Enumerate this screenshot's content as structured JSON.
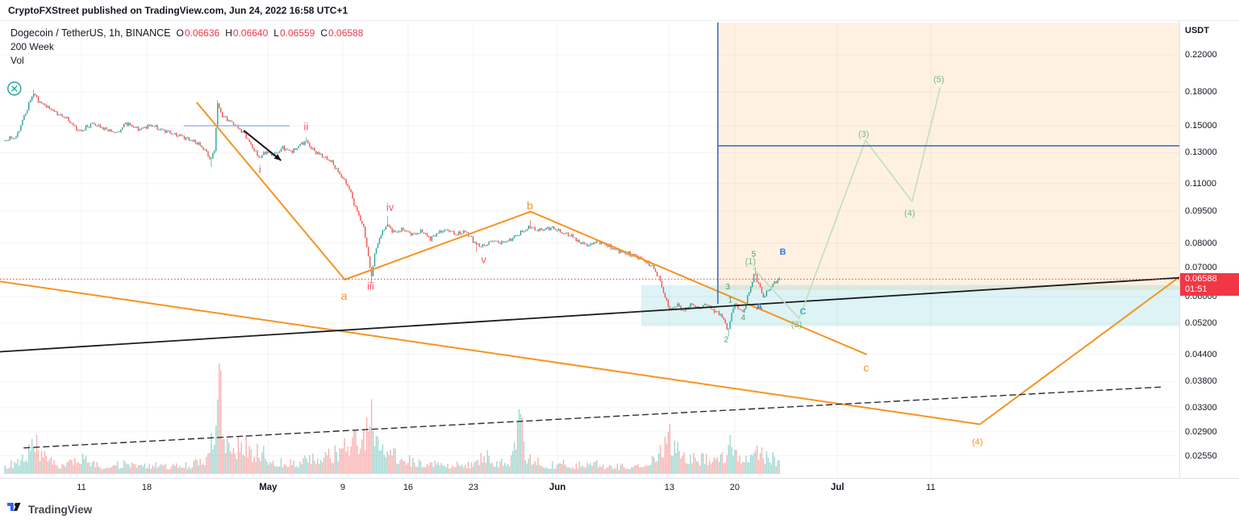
{
  "publish_bar": {
    "publisher": "CryptoFXStreet",
    "rest": " published on TradingView.com, Jun 24, 2022 16:58 UTC+1"
  },
  "legend": {
    "title": "Dogecoin / TetherUS, 1h, BINANCE",
    "ohlc": [
      {
        "k": "O",
        "v": "0.06636"
      },
      {
        "k": "H",
        "v": "0.06640"
      },
      {
        "k": "L",
        "v": "0.06559"
      },
      {
        "k": "C",
        "v": "0.06588"
      }
    ],
    "rows": [
      "200 Week",
      "Vol"
    ]
  },
  "price_axis": {
    "unit": "USDT",
    "ticks": [
      "0.22000",
      "0.18000",
      "0.15000",
      "0.13000",
      "0.11000",
      "0.09500",
      "0.08000",
      "0.07000",
      "0.06000",
      "0.05200",
      "0.04400",
      "0.03800",
      "0.03300",
      "0.02900",
      "0.02550"
    ],
    "badge": {
      "price": "0.06588",
      "countdown": "01:51"
    }
  },
  "time_axis": {
    "ticks": [
      {
        "label": "11",
        "day": 7
      },
      {
        "label": "18",
        "day": 14
      },
      {
        "label": "May",
        "day": 27
      },
      {
        "label": "9",
        "day": 35
      },
      {
        "label": "16",
        "day": 42
      },
      {
        "label": "23",
        "day": 49
      },
      {
        "label": "Jun",
        "day": 58
      },
      {
        "label": "13",
        "day": 70
      },
      {
        "label": "20",
        "day": 77
      },
      {
        "label": "Jul",
        "day": 88
      },
      {
        "label": "11",
        "day": 98
      }
    ]
  },
  "footer": {
    "brand": "TradingView"
  },
  "chart_data": {
    "type": "candlestick+volume",
    "symbol": "Dogecoin / TetherUS",
    "exchange": "BINANCE",
    "interval": "1h",
    "scale": "log",
    "ohlc_last": {
      "o": 0.06636,
      "h": 0.0664,
      "l": 0.06559,
      "c": 0.06588
    },
    "last_price": 0.06588,
    "countdown": "01:51",
    "colors": {
      "up": "#26a69a",
      "down": "#ef5350",
      "red": "#f7525f",
      "orange": "#f59422",
      "green": "#4d9e57",
      "green2": "#7ab97e",
      "blue": "#2a7de1",
      "teal": "#2ab6c9",
      "pale_green": "#bedfbf",
      "badge": "#f23645",
      "blue_line": "#3d6fc7",
      "ma_line": "#1b1b1b",
      "dashed_line": "#2a2e39",
      "light_blue": "#9fb8e6"
    },
    "price_anchors": [
      [
        -1.25,
        0.1385
      ],
      [
        0.2,
        0.142
      ],
      [
        0.9,
        0.157
      ],
      [
        1.5,
        0.169
      ],
      [
        1.95,
        0.179
      ],
      [
        2.5,
        0.1715
      ],
      [
        3.3,
        0.167
      ],
      [
        4.3,
        0.162
      ],
      [
        5.5,
        0.1565
      ],
      [
        6.9,
        0.1455
      ],
      [
        8.3,
        0.152
      ],
      [
        9.7,
        0.147
      ],
      [
        11.0,
        0.1445
      ],
      [
        11.9,
        0.1525
      ],
      [
        13.2,
        0.1475
      ],
      [
        14.6,
        0.1505
      ],
      [
        16.0,
        0.146
      ],
      [
        17.6,
        0.1425
      ],
      [
        19.2,
        0.1385
      ],
      [
        20.4,
        0.132
      ],
      [
        20.95,
        0.1245
      ],
      [
        21.35,
        0.131
      ],
      [
        21.7,
        0.168
      ],
      [
        22.2,
        0.158
      ],
      [
        23.0,
        0.1545
      ],
      [
        23.8,
        0.1495
      ],
      [
        24.6,
        0.1435
      ],
      [
        25.4,
        0.1335
      ],
      [
        26.15,
        0.1265
      ],
      [
        26.9,
        0.1305
      ],
      [
        27.7,
        0.128
      ],
      [
        28.7,
        0.1335
      ],
      [
        29.7,
        0.1305
      ],
      [
        30.7,
        0.1365
      ],
      [
        31.15,
        0.1385
      ],
      [
        32.0,
        0.1315
      ],
      [
        32.9,
        0.128
      ],
      [
        33.9,
        0.124
      ],
      [
        34.7,
        0.1165
      ],
      [
        35.25,
        0.1125
      ],
      [
        35.8,
        0.1075
      ],
      [
        36.3,
        0.099
      ],
      [
        36.9,
        0.092
      ],
      [
        37.4,
        0.086
      ],
      [
        37.85,
        0.0745
      ],
      [
        38.15,
        0.066
      ],
      [
        38.5,
        0.0745
      ],
      [
        39.0,
        0.082
      ],
      [
        39.85,
        0.0885
      ],
      [
        40.7,
        0.0845
      ],
      [
        41.6,
        0.0862
      ],
      [
        42.6,
        0.0838
      ],
      [
        43.6,
        0.0855
      ],
      [
        44.4,
        0.0818
      ],
      [
        45.3,
        0.0845
      ],
      [
        46.3,
        0.086
      ],
      [
        47.3,
        0.0838
      ],
      [
        48.3,
        0.0852
      ],
      [
        49.4,
        0.0795
      ],
      [
        50.15,
        0.0785
      ],
      [
        51.1,
        0.081
      ],
      [
        52.1,
        0.0802
      ],
      [
        53.0,
        0.0812
      ],
      [
        53.9,
        0.0838
      ],
      [
        54.8,
        0.0862
      ],
      [
        55.15,
        0.0878
      ],
      [
        55.9,
        0.0855
      ],
      [
        56.7,
        0.0862
      ],
      [
        57.6,
        0.087
      ],
      [
        58.5,
        0.0848
      ],
      [
        59.5,
        0.0835
      ],
      [
        60.4,
        0.0805
      ],
      [
        61.4,
        0.0788
      ],
      [
        62.4,
        0.081
      ],
      [
        63.4,
        0.079
      ],
      [
        64.5,
        0.0768
      ],
      [
        65.6,
        0.0755
      ],
      [
        66.6,
        0.0748
      ],
      [
        67.4,
        0.0728
      ],
      [
        68.3,
        0.0705
      ],
      [
        69.0,
        0.0665
      ],
      [
        69.6,
        0.06
      ],
      [
        70.25,
        0.0555
      ],
      [
        70.9,
        0.0575
      ],
      [
        71.6,
        0.0556
      ],
      [
        72.4,
        0.0574
      ],
      [
        73.2,
        0.0564
      ],
      [
        74.1,
        0.0576
      ],
      [
        74.9,
        0.0556
      ],
      [
        75.6,
        0.0545
      ],
      [
        76.05,
        0.0524
      ],
      [
        76.4,
        0.0496
      ],
      [
        76.7,
        0.0542
      ],
      [
        77.05,
        0.0578
      ],
      [
        77.55,
        0.0564
      ],
      [
        78.0,
        0.0547
      ],
      [
        78.4,
        0.059
      ],
      [
        78.85,
        0.0638
      ],
      [
        79.2,
        0.0678
      ],
      [
        79.65,
        0.0646
      ],
      [
        80.15,
        0.0597
      ],
      [
        80.55,
        0.0617
      ],
      [
        81.05,
        0.0635
      ],
      [
        81.5,
        0.0652
      ],
      [
        81.8,
        0.0659
      ]
    ],
    "wick_events": [
      [
        1.95,
        "h",
        0.1825
      ],
      [
        20.95,
        "l",
        0.1205
      ],
      [
        21.7,
        "h",
        0.1725
      ],
      [
        31.15,
        "h",
        0.1413
      ],
      [
        38.15,
        "l",
        0.0641
      ],
      [
        39.85,
        "h",
        0.0925
      ],
      [
        49.4,
        "l",
        0.0763
      ],
      [
        55.15,
        "h",
        0.0905
      ],
      [
        76.4,
        "l",
        0.0484
      ],
      [
        79.2,
        "h",
        0.0703
      ]
    ],
    "volume_anchors": [
      [
        -1.25,
        12
      ],
      [
        0.5,
        18
      ],
      [
        1.2,
        35
      ],
      [
        1.95,
        48
      ],
      [
        2.5,
        30
      ],
      [
        3.5,
        18
      ],
      [
        5,
        13
      ],
      [
        7,
        22
      ],
      [
        8.5,
        14
      ],
      [
        10,
        11
      ],
      [
        11.9,
        16
      ],
      [
        13.5,
        11
      ],
      [
        15,
        13
      ],
      [
        17,
        11
      ],
      [
        19,
        15
      ],
      [
        20.5,
        26
      ],
      [
        21.0,
        55
      ],
      [
        21.45,
        70
      ],
      [
        21.7,
        150
      ],
      [
        22.0,
        85
      ],
      [
        22.5,
        45
      ],
      [
        23.2,
        28
      ],
      [
        24.2,
        52
      ],
      [
        25.2,
        30
      ],
      [
        26.2,
        34
      ],
      [
        27.2,
        22
      ],
      [
        28.5,
        18
      ],
      [
        30,
        16
      ],
      [
        31.2,
        24
      ],
      [
        32.5,
        20
      ],
      [
        34,
        30
      ],
      [
        35.3,
        42
      ],
      [
        36.4,
        52
      ],
      [
        37.4,
        62
      ],
      [
        38.15,
        88
      ],
      [
        38.6,
        62
      ],
      [
        39.2,
        48
      ],
      [
        40,
        34
      ],
      [
        41,
        24
      ],
      [
        42.5,
        18
      ],
      [
        44,
        16
      ],
      [
        45.5,
        14
      ],
      [
        47,
        15
      ],
      [
        48.5,
        14
      ],
      [
        49.5,
        20
      ],
      [
        50.2,
        28
      ],
      [
        51.5,
        16
      ],
      [
        53.0,
        20
      ],
      [
        53.9,
        92
      ],
      [
        54.5,
        26
      ],
      [
        55.5,
        20
      ],
      [
        56.5,
        15
      ],
      [
        57.5,
        13
      ],
      [
        58.5,
        15
      ],
      [
        59.5,
        12
      ],
      [
        60.5,
        14
      ],
      [
        61.5,
        16
      ],
      [
        62.5,
        13
      ],
      [
        63.5,
        12
      ],
      [
        64.5,
        11
      ],
      [
        65.5,
        10
      ],
      [
        66.5,
        13
      ],
      [
        67.5,
        20
      ],
      [
        68.5,
        30
      ],
      [
        69.3,
        45
      ],
      [
        70.0,
        52
      ],
      [
        70.6,
        40
      ],
      [
        71.3,
        30
      ],
      [
        72.2,
        26
      ],
      [
        73.0,
        22
      ],
      [
        74.0,
        24
      ],
      [
        75.0,
        22
      ],
      [
        75.8,
        28
      ],
      [
        76.4,
        42
      ],
      [
        77.0,
        34
      ],
      [
        77.8,
        26
      ],
      [
        78.5,
        30
      ],
      [
        79.2,
        40
      ],
      [
        79.8,
        28
      ],
      [
        80.5,
        24
      ],
      [
        81.2,
        22
      ],
      [
        81.8,
        16
      ]
    ],
    "wave_labels": [
      {
        "t": "i",
        "d": 26.13,
        "p": 0.119,
        "c": "red",
        "s": 13
      },
      {
        "t": "ii",
        "d": 31.06,
        "p": 0.1496,
        "c": "red",
        "s": 13
      },
      {
        "t": "iii",
        "d": 37.99,
        "p": 0.0635,
        "c": "red",
        "s": 13
      },
      {
        "t": "iv",
        "d": 40.07,
        "p": 0.097,
        "c": "red",
        "s": 13
      },
      {
        "t": "v",
        "d": 50.11,
        "p": 0.0733,
        "c": "red",
        "s": 13
      },
      {
        "t": "a",
        "d": 35.13,
        "p": 0.0603,
        "c": "orange",
        "s": 14
      },
      {
        "t": "b",
        "d": 55.05,
        "p": 0.0979,
        "c": "orange",
        "s": 14
      },
      {
        "t": "c",
        "d": 91.07,
        "p": 0.041,
        "c": "orange",
        "s": 14
      },
      {
        "t": "(4)",
        "d": 103.0,
        "p": 0.0275,
        "c": "orange",
        "s": 11
      },
      {
        "t": "1",
        "d": 76.52,
        "p": 0.059,
        "c": "green",
        "s": 10
      },
      {
        "t": "2",
        "d": 76.09,
        "p": 0.0477,
        "c": "green",
        "s": 10
      },
      {
        "t": "3",
        "d": 76.26,
        "p": 0.0633,
        "c": "green",
        "s": 10
      },
      {
        "t": "4",
        "d": 77.9,
        "p": 0.0536,
        "c": "green",
        "s": 10
      },
      {
        "t": "5",
        "d": 79.03,
        "p": 0.0755,
        "c": "green",
        "s": 10
      },
      {
        "t": "(1)",
        "d": 78.68,
        "p": 0.0726,
        "c": "green2",
        "s": 11
      },
      {
        "t": "(2)",
        "d": 83.62,
        "p": 0.0517,
        "c": "green2",
        "s": 11
      },
      {
        "t": "(3)",
        "d": 90.81,
        "p": 0.1439,
        "c": "green2",
        "s": 11
      },
      {
        "t": "(4)",
        "d": 95.74,
        "p": 0.0941,
        "c": "green2",
        "s": 11
      },
      {
        "t": "(5)",
        "d": 98.86,
        "p": 0.1932,
        "c": "green2",
        "s": 11
      },
      {
        "t": "A",
        "d": 79.64,
        "p": 0.0569,
        "c": "blue",
        "s": 11,
        "b": 1
      },
      {
        "t": "B",
        "d": 82.15,
        "p": 0.0765,
        "c": "blue",
        "s": 11,
        "b": 1
      },
      {
        "t": "C",
        "d": 84.31,
        "p": 0.0555,
        "c": "teal",
        "s": 11,
        "b": 1
      }
    ],
    "overlays": {
      "orange_zone": {
        "d1": 75.19,
        "p_top": 0.2617,
        "p_bot": 0.0622
      },
      "blue_zone": {
        "d1": 66.98,
        "p_top": 0.0638,
        "p_bot": 0.0512
      },
      "blue_cross": {
        "day": 75.19,
        "v_top": 0.2617,
        "v_bot": 0.0577,
        "h_price": 0.1349
      },
      "orange_zigzag": [
        [
          19.38,
          0.17
        ],
        [
          35.22,
          0.0657
        ],
        [
          55.12,
          0.0947
        ],
        [
          91.07,
          0.044
        ]
      ],
      "orange_channel": [
        [
          -1.75,
          0.0651
        ],
        [
          103.27,
          0.0302
        ],
        [
          124.7,
          0.0668
        ]
      ],
      "ma_200w": [
        [
          -1.75,
          0.0446
        ],
        [
          124.7,
          0.0664
        ]
      ],
      "dashed_trend": [
        [
          0.85,
          0.0266
        ],
        [
          122.6,
          0.0369
        ]
      ],
      "green_projection": [
        [
          79.0,
          0.0698
        ],
        [
          83.9,
          0.0533
        ],
        [
          91.0,
          0.139
        ],
        [
          96.0,
          0.1
        ],
        [
          99.0,
          0.184
        ]
      ],
      "light_blue_segment": [
        [
          18.0,
          0.1502
        ],
        [
          29.25,
          0.1502
        ]
      ],
      "arrow": [
        [
          24.4,
          0.1464
        ],
        [
          28.38,
          0.1247
        ]
      ],
      "circle_x": {
        "d": -0.19,
        "p": 0.1835
      }
    }
  }
}
